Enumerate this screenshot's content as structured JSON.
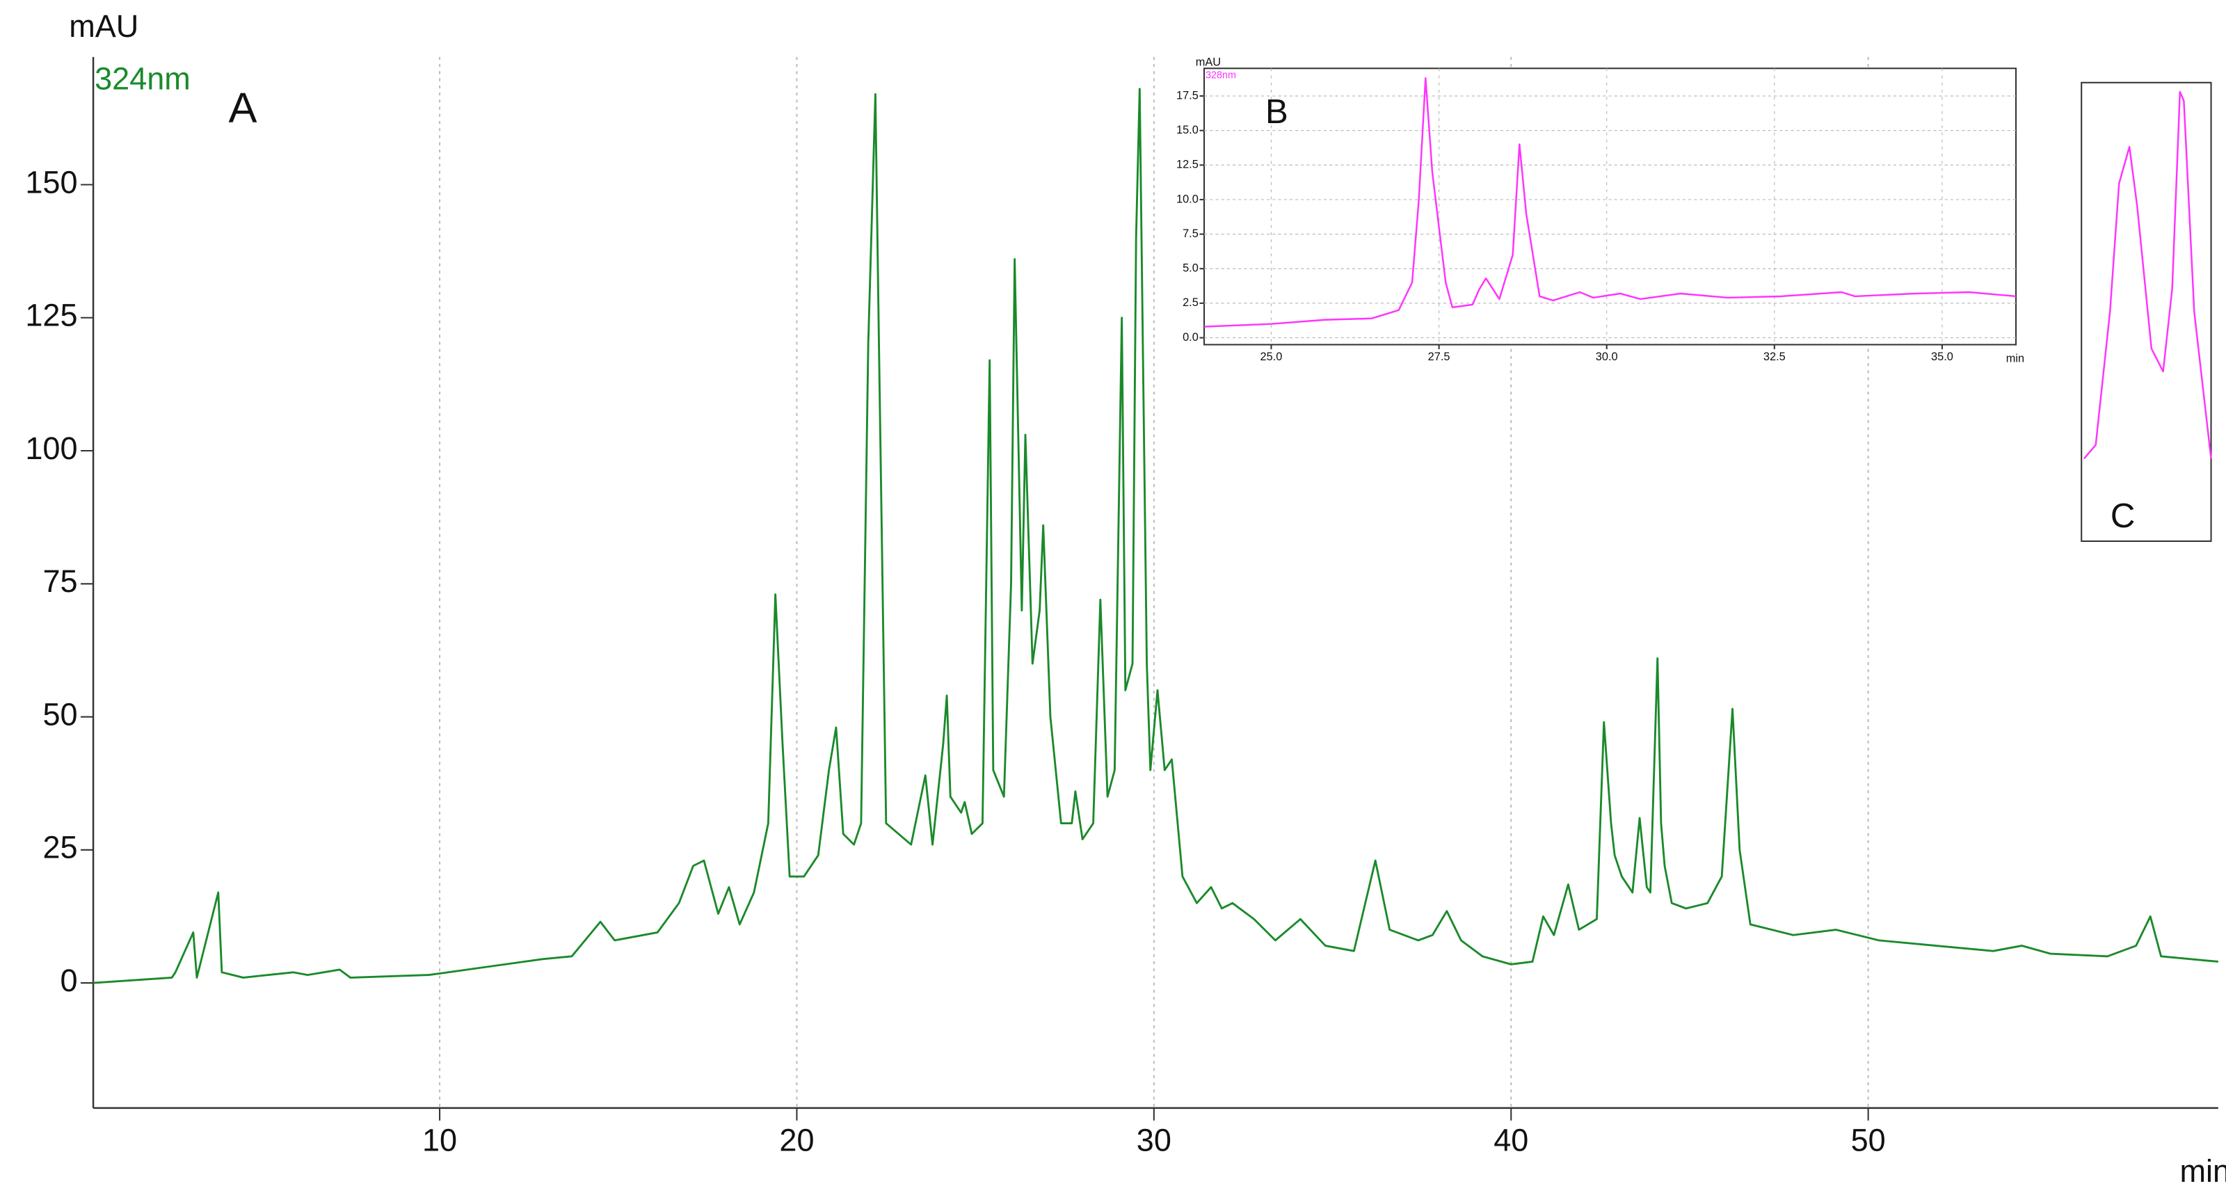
{
  "chart_data": [
    {
      "type": "line",
      "label": "A",
      "ylabel": "mAU",
      "xlabel": "min",
      "xlim": [
        0.3,
        59.8
      ],
      "ylim": [
        -23.5,
        174
      ],
      "xticks": [
        10,
        20,
        30,
        40,
        50
      ],
      "yticks": [
        0,
        25,
        50,
        75,
        100,
        125,
        150
      ],
      "grid": true,
      "x": [
        0.3,
        2.5,
        2.6,
        3.1,
        3.2,
        3.8,
        3.9,
        4.5,
        5.9,
        6.3,
        7.2,
        7.5,
        9.7,
        11.3,
        12.9,
        13.7,
        14.5,
        14.9,
        15.3,
        16.1,
        16.7,
        17.1,
        17.4,
        17.6,
        17.8,
        18.1,
        18.4,
        18.8,
        19.2,
        19.4,
        19.6,
        19.8,
        20.2,
        20.6,
        20.9,
        21.1,
        21.3,
        21.6,
        21.8,
        22.0,
        22.2,
        22.3,
        22.5,
        23.2,
        23.6,
        23.8,
        24.1,
        24.2,
        24.3,
        24.6,
        24.7,
        24.9,
        25.2,
        25.4,
        25.5,
        25.8,
        26.0,
        26.1,
        26.3,
        26.4,
        26.6,
        26.8,
        26.9,
        27.1,
        27.4,
        27.7,
        27.8,
        28.0,
        28.3,
        28.5,
        28.7,
        28.9,
        29.1,
        29.2,
        29.4,
        29.5,
        29.6,
        29.8,
        29.9,
        30.1,
        30.3,
        30.5,
        30.8,
        31.2,
        31.6,
        31.9,
        32.2,
        32.8,
        33.4,
        34.1,
        34.8,
        35.6,
        36.2,
        36.6,
        37.4,
        37.8,
        38.2,
        38.6,
        39.2,
        40.0,
        40.6,
        40.9,
        41.2,
        41.6,
        41.9,
        42.4,
        42.6,
        42.8,
        42.9,
        43.1,
        43.4,
        43.6,
        43.8,
        43.9,
        44.1,
        44.2,
        44.3,
        44.5,
        44.9,
        45.5,
        45.9,
        46.2,
        46.4,
        46.7,
        47.9,
        49.1,
        50.3,
        51.9,
        53.5,
        54.3,
        55.1,
        56.7,
        57.5,
        57.9,
        58.2,
        59.8
      ],
      "series": [
        {
          "name": "324nm",
          "color": "#1a8a2a",
          "values": [
            0,
            1,
            2,
            9.5,
            1,
            17,
            2,
            1,
            2,
            1.5,
            2.5,
            1,
            1.5,
            3,
            4.5,
            5,
            11.5,
            8,
            8.5,
            9.5,
            15,
            22,
            23,
            18,
            13,
            18,
            11,
            17,
            30,
            73,
            45,
            20,
            20,
            24,
            40,
            48,
            28,
            26,
            30,
            120,
            167,
            120,
            30,
            26,
            39,
            26,
            45,
            54,
            35,
            32,
            34,
            28,
            30,
            117,
            40,
            35,
            75,
            136,
            70,
            103,
            60,
            70,
            86,
            50,
            30,
            30,
            36,
            27,
            30,
            72,
            35,
            40,
            125,
            55,
            60,
            140,
            168,
            60,
            40,
            55,
            40,
            42,
            20,
            15,
            18,
            14,
            15,
            12,
            8,
            12,
            7,
            6,
            23,
            10,
            8,
            9,
            13.5,
            8,
            5,
            3.5,
            4,
            12.5,
            9,
            18.5,
            10,
            12,
            49,
            30,
            24,
            20,
            17,
            31,
            18,
            17,
            61,
            30,
            22,
            15,
            14,
            15,
            20,
            51.5,
            25,
            11,
            9,
            10,
            8,
            7,
            6,
            7,
            5.5,
            5,
            7,
            12.5,
            5,
            4
          ]
        }
      ]
    },
    {
      "type": "line",
      "label": "B",
      "ylabel": "mAU",
      "xlabel": "min",
      "xlim": [
        24.0,
        36.1
      ],
      "ylim": [
        -0.5,
        19.5
      ],
      "grid": true,
      "xticks": [
        {
          "value": 25,
          "label": "25.0"
        },
        27.5,
        {
          "value": 30,
          "label": "30.0"
        },
        32.5,
        {
          "value": 35,
          "label": "35.0"
        }
      ],
      "yticks": [
        {
          "value": 0,
          "label": "0.0"
        },
        2.5,
        {
          "value": 5,
          "label": "5.0"
        },
        7.5,
        {
          "value": 10,
          "label": "10.0"
        },
        12.5,
        {
          "value": 15,
          "label": "15.0"
        },
        17.5
      ],
      "x": [
        24.0,
        25.0,
        25.8,
        26.5,
        26.9,
        27.1,
        27.2,
        27.3,
        27.4,
        27.6,
        27.7,
        28.0,
        28.1,
        28.2,
        28.4,
        28.6,
        28.7,
        28.8,
        29.0,
        29.2,
        29.6,
        29.8,
        30.2,
        30.5,
        31.1,
        31.8,
        32.6,
        33.5,
        33.7,
        34.6,
        35.4,
        36.1
      ],
      "series": [
        {
          "name": "328nm",
          "color": "#ff33ff",
          "values": [
            0.8,
            1.0,
            1.3,
            1.4,
            2.0,
            4,
            10,
            18.8,
            12,
            4,
            2.2,
            2.4,
            3.5,
            4.3,
            2.8,
            6,
            14,
            9,
            3,
            2.7,
            3.3,
            2.9,
            3.2,
            2.8,
            3.2,
            2.9,
            3.0,
            3.3,
            3.0,
            3.2,
            3.3,
            3.0
          ]
        }
      ]
    },
    {
      "type": "line",
      "label": "C",
      "xlim": [
        0,
        10
      ],
      "ylim": [
        0,
        100
      ],
      "x": [
        0.2,
        1.1,
        2.2,
        2.9,
        3.7,
        4.3,
        5.4,
        6.3,
        7.0,
        7.6,
        7.9,
        8.7,
        10
      ],
      "series": [
        {
          "color": "#ff33ff",
          "values": [
            18,
            21,
            50,
            78,
            86,
            73,
            42,
            37,
            55,
            98,
            96,
            50,
            18
          ]
        }
      ]
    }
  ]
}
